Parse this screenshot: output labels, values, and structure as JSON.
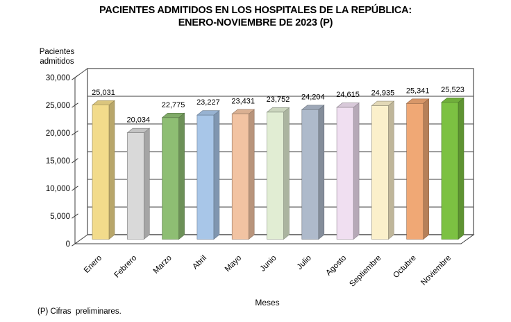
{
  "title_lines": [
    "PACIENTES ADMITIDOS EN LOS HOSPITALES DE LA REPÚBLICA:",
    "ENERO-NOVIEMBRE DE 2023 (P)"
  ],
  "y_axis_title": "Pacientes admitidos",
  "x_axis_title": "Meses",
  "footnote": "(P) Cifras  preliminares.",
  "chart_data": {
    "type": "bar",
    "style": "3d-column",
    "title": "PACIENTES ADMITIDOS EN LOS HOSPITALES DE LA REPÚBLICA: ENERO-NOVIEMBRE DE 2023 (P)",
    "xlabel": "Meses",
    "ylabel": "Pacientes admitidos",
    "categories": [
      "Enero",
      "Febrero",
      "Marzo",
      "Abril",
      "Mayo",
      "Junio",
      "Julio",
      "Agosto",
      "Septiembre",
      "Octubre",
      "Noviembre"
    ],
    "values": [
      25031,
      20034,
      22775,
      23227,
      23431,
      23752,
      24204,
      24615,
      24935,
      25341,
      25523
    ],
    "value_labels": [
      "25,031",
      "20,034",
      "22,775",
      "23,227",
      "23,431",
      "23,752",
      "24,204",
      "24,615",
      "24,935",
      "25,341",
      "25,523"
    ],
    "ylim": [
      0,
      30000
    ],
    "y_tick_step": 5000,
    "y_tick_labels": [
      "0",
      "5,000",
      "10,000",
      "15,000",
      "20,000",
      "25,000",
      "30,000"
    ],
    "grid": true,
    "legend": false,
    "bar_colors": [
      "#F2DB8B",
      "#D9D9D9",
      "#8EBE73",
      "#A8C6E8",
      "#F2C3A2",
      "#E1EDD3",
      "#AEBACB",
      "#F0DFF1",
      "#FBF0CB",
      "#F0A875",
      "#7CC142"
    ],
    "colors": {
      "gridline": "#3f3f3f",
      "wall_border": "#808080",
      "axis": "#3f3f3f",
      "background": "#ffffff",
      "label_text": "#000000"
    }
  }
}
